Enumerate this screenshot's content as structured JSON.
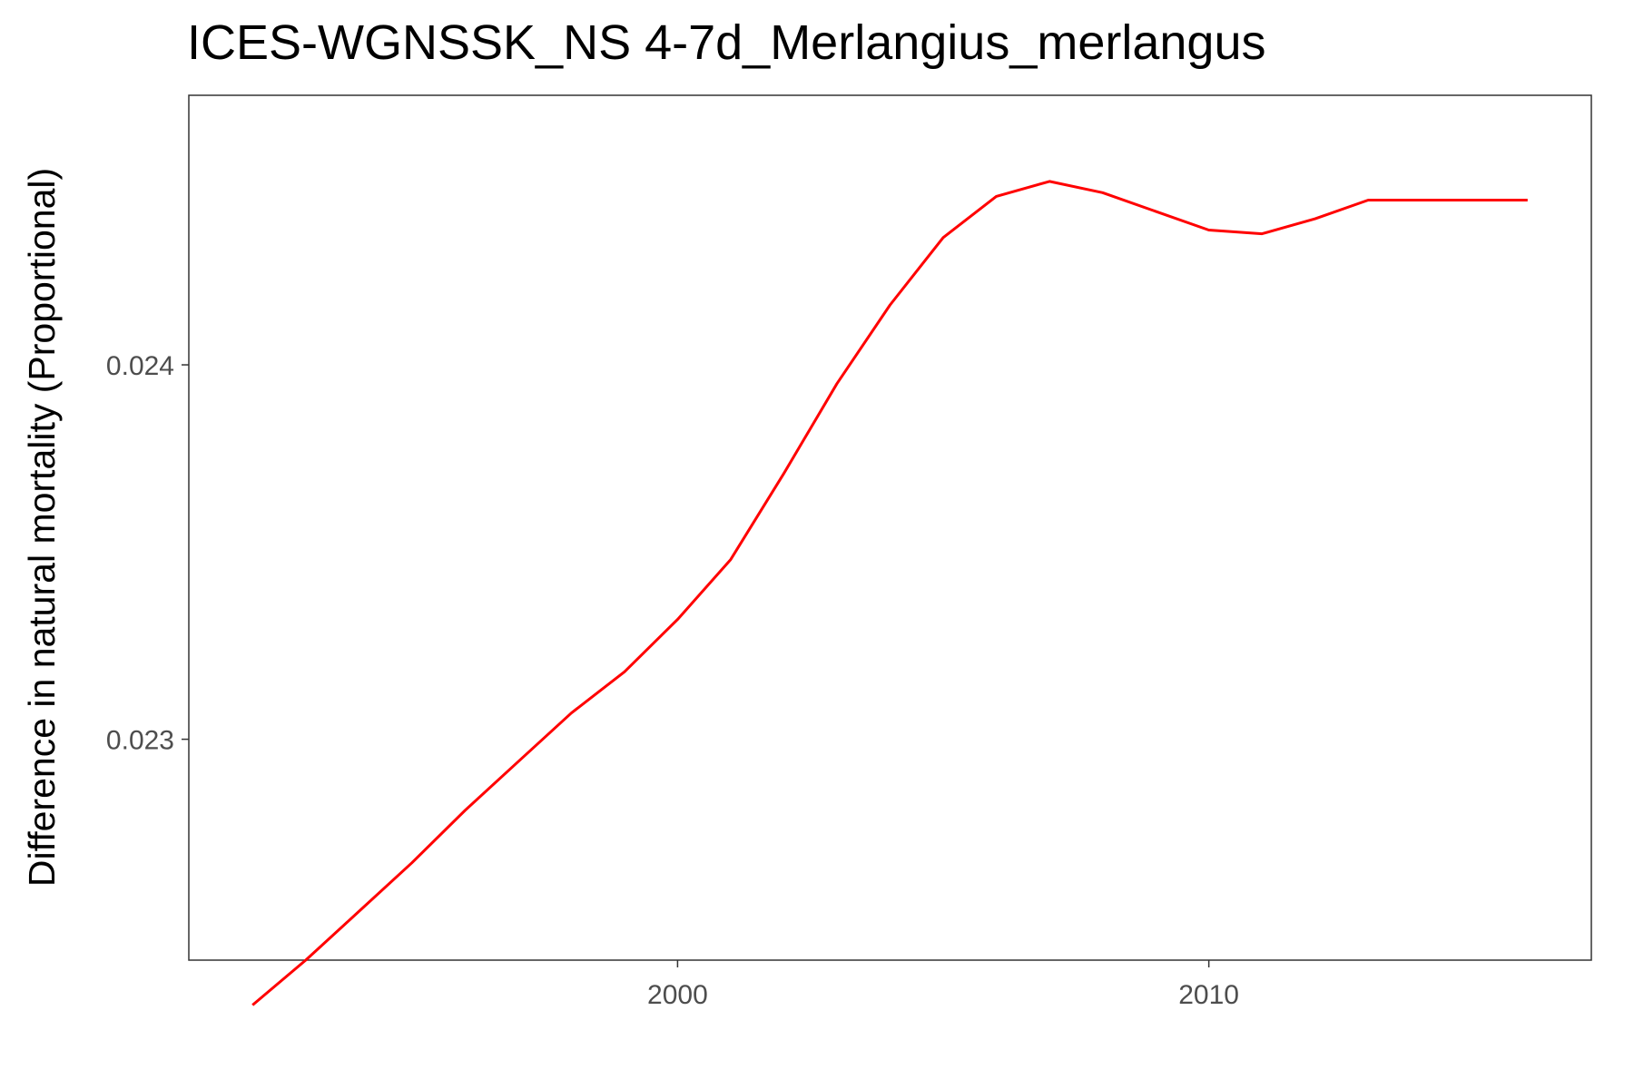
{
  "chart_data": {
    "type": "line",
    "title": "ICES-WGNSSK_NS 4-7d_Merlangius_merlangus",
    "xlabel": "",
    "ylabel": "Difference in natural mortality (Proportional)",
    "xlim": [
      1990.8,
      2017.2
    ],
    "ylim": [
      0.02241,
      0.02472
    ],
    "x_ticks": [
      2000,
      2010
    ],
    "y_ticks": [
      0.023,
      0.024
    ],
    "x_tick_labels": [
      "2000",
      "2010"
    ],
    "y_tick_labels": [
      "0.023",
      "0.024"
    ],
    "grid": false,
    "legend": "none",
    "series": [
      {
        "color": "#ff0000",
        "x": [
          1992,
          1993,
          1994,
          1995,
          1996,
          1997,
          1998,
          1999,
          2000,
          2001,
          2002,
          2003,
          2004,
          2005,
          2006,
          2007,
          2008,
          2009,
          2010,
          2011,
          2012,
          2013,
          2014,
          2015,
          2016
        ],
        "values": [
          0.02229,
          0.02241,
          0.02254,
          0.02267,
          0.02281,
          0.02294,
          0.02307,
          0.02318,
          0.02332,
          0.02348,
          0.02371,
          0.02395,
          0.02416,
          0.02434,
          0.02445,
          0.02449,
          0.02446,
          0.02441,
          0.02436,
          0.02435,
          0.02439,
          0.02444,
          0.02444,
          0.02444,
          0.02444
        ]
      }
    ]
  }
}
